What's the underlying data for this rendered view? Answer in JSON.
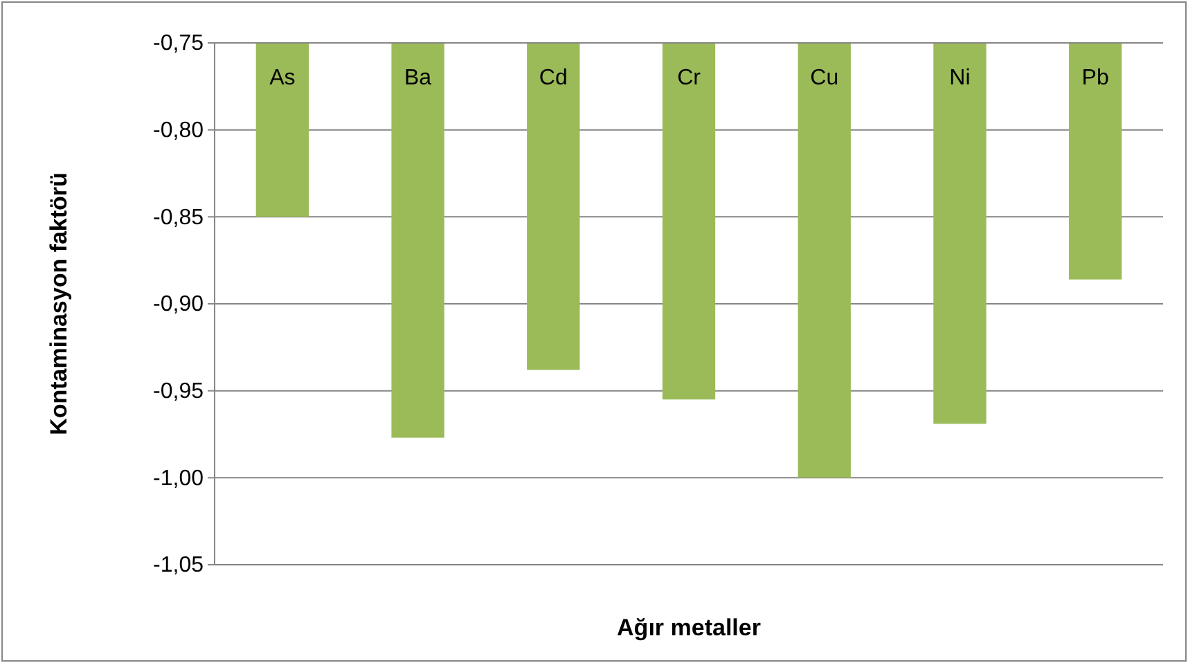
{
  "chart_data": {
    "type": "bar",
    "xlabel": "Ağır metaller",
    "ylabel": "Kontaminasyon faktörü",
    "categories": [
      "As",
      "Ba",
      "Cd",
      "Cr",
      "Cu",
      "Ni",
      "Pb"
    ],
    "values": [
      -0.85,
      -0.977,
      -0.938,
      -0.955,
      -1.0,
      -0.969,
      -0.886
    ],
    "color": "#9bbb59",
    "ylim": [
      -1.05,
      -0.75
    ],
    "yticks": [
      {
        "value": -1.05,
        "label": "-1,05"
      },
      {
        "value": -1.0,
        "label": "-1,00"
      },
      {
        "value": -0.95,
        "label": "-0,95"
      },
      {
        "value": -0.9,
        "label": "-0,90"
      },
      {
        "value": -0.85,
        "label": "-0,85"
      },
      {
        "value": -0.8,
        "label": "-0,80"
      },
      {
        "value": -0.75,
        "label": "-0,75"
      }
    ],
    "grid": "y"
  }
}
